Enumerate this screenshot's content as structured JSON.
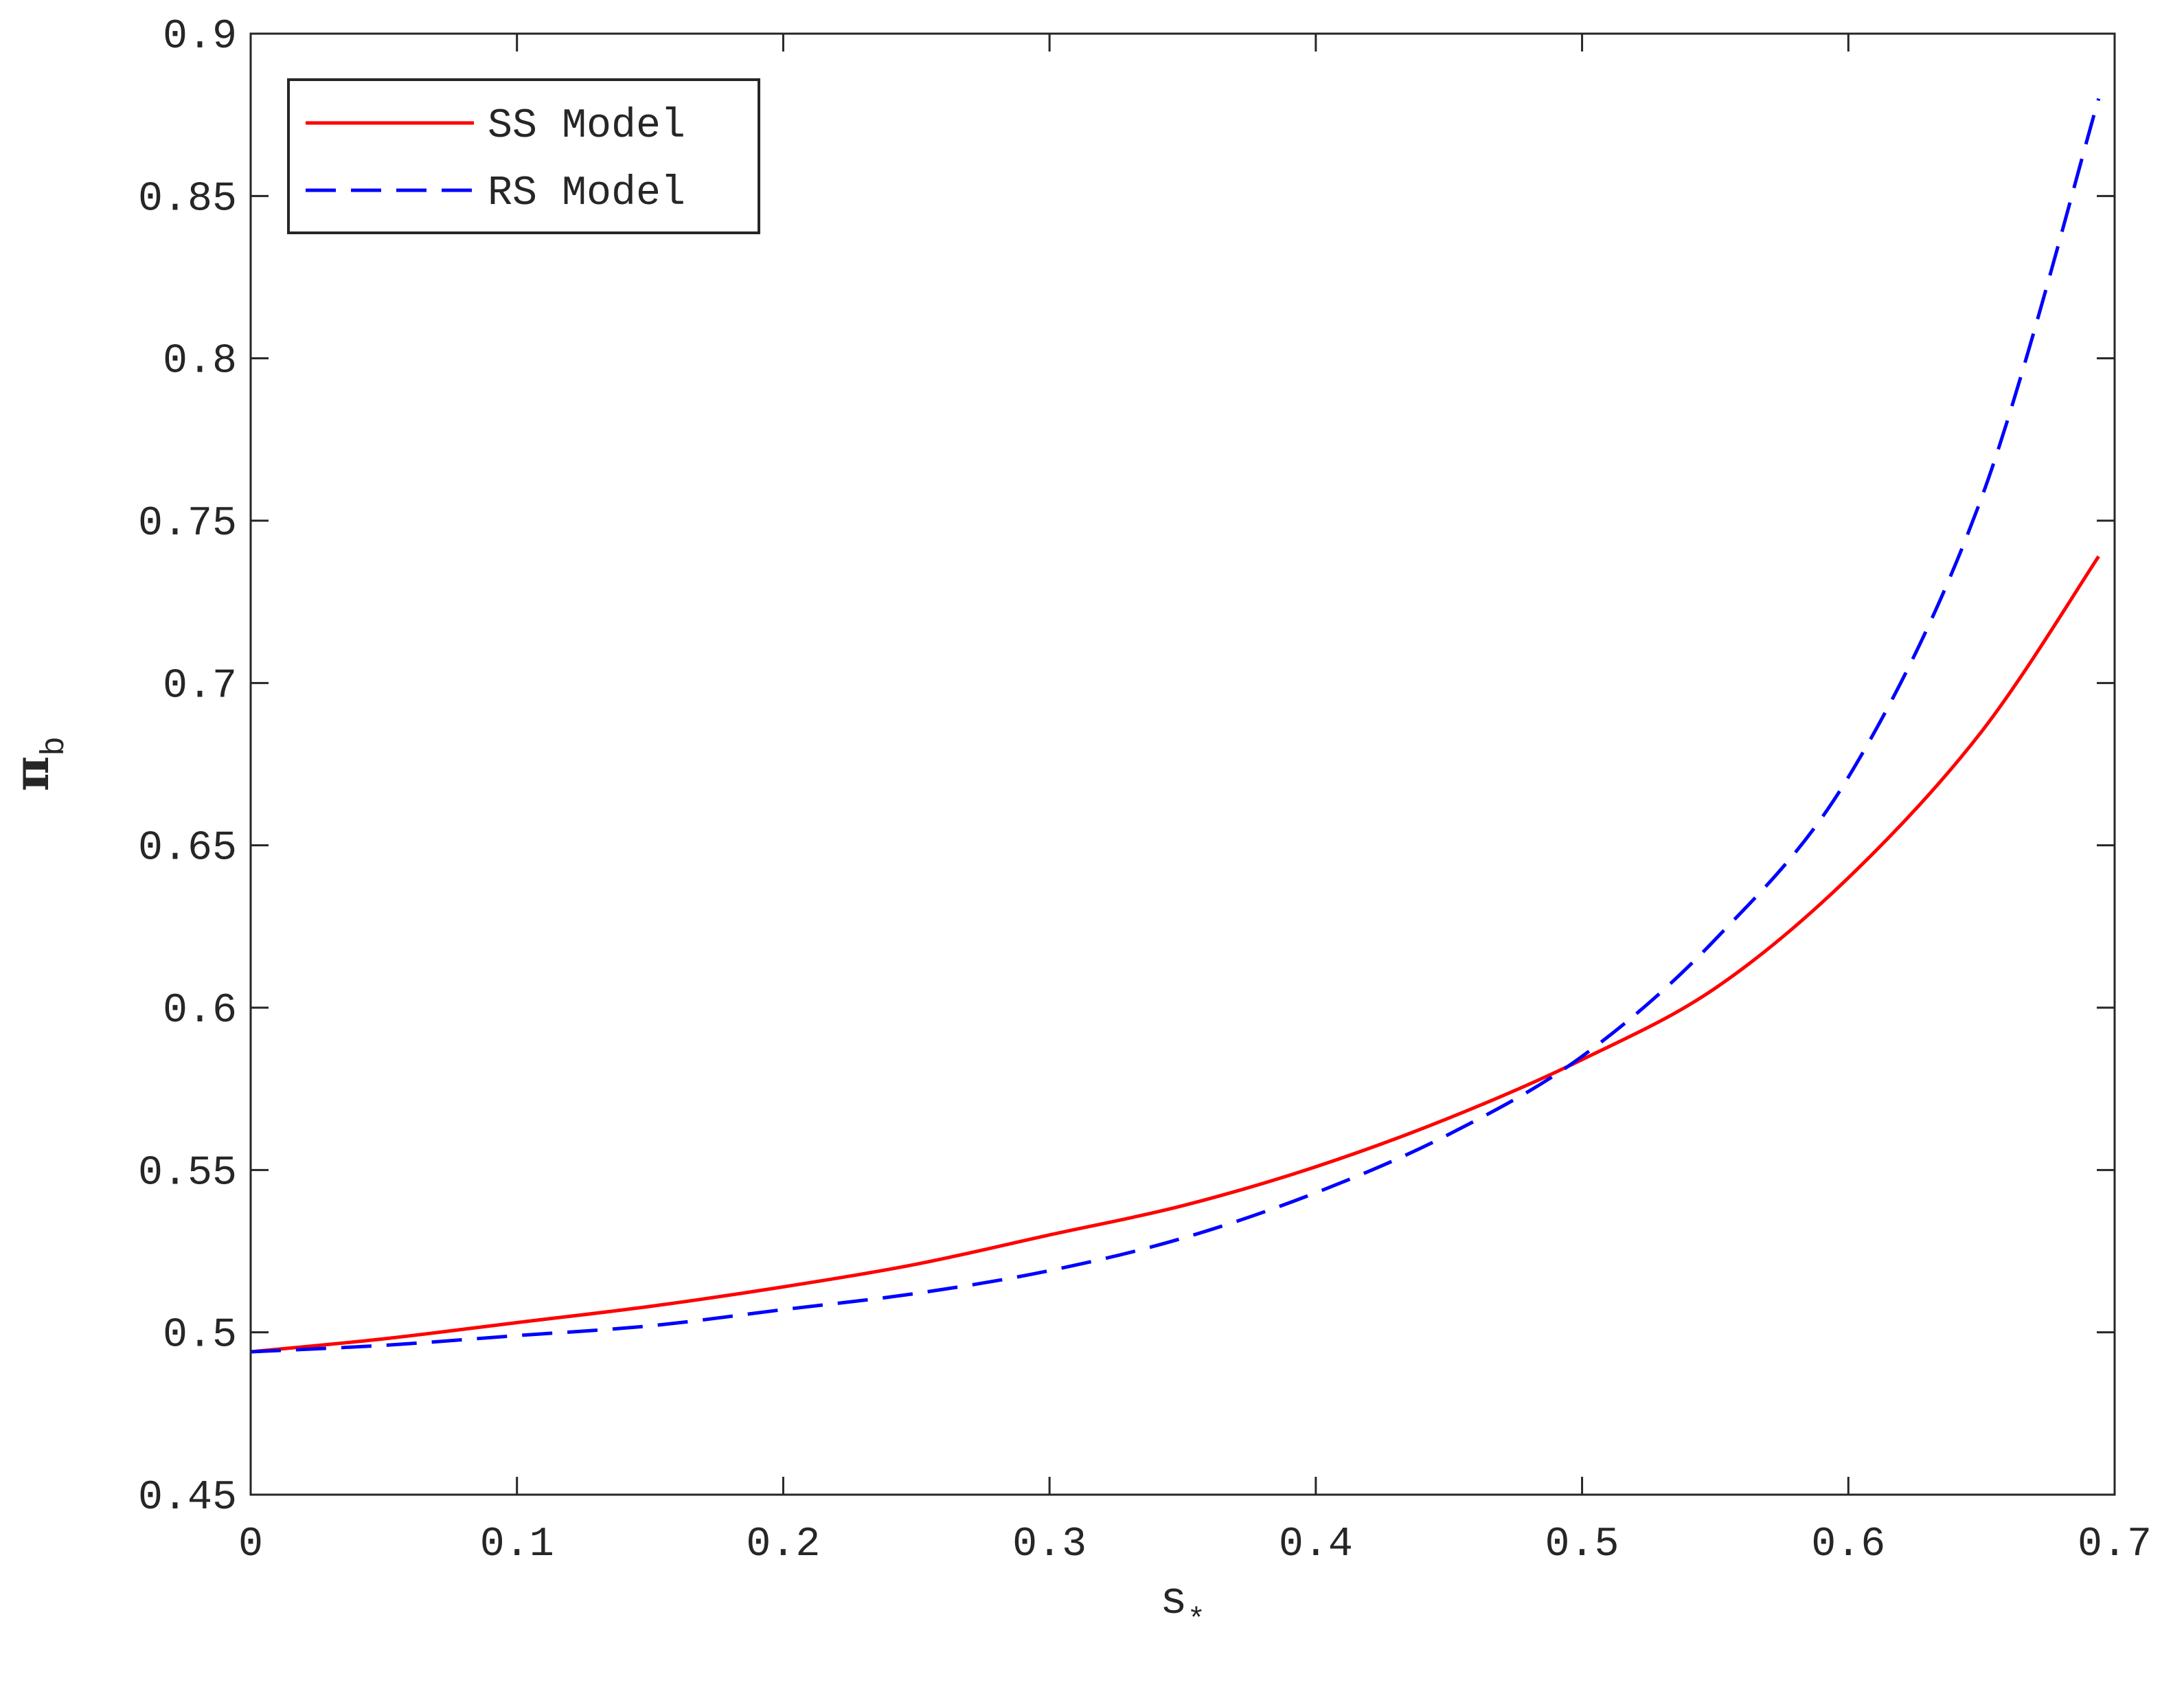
{
  "chart_data": {
    "type": "line",
    "xlabel": "s",
    "xlabel_sub": "*",
    "ylabel": "π",
    "ylabel_sub": "b",
    "x": [
      0,
      0.05,
      0.1,
      0.15,
      0.2,
      0.25,
      0.3,
      0.35,
      0.4,
      0.45,
      0.5,
      0.55,
      0.6,
      0.65,
      0.694
    ],
    "series": [
      {
        "name": "SS Model",
        "color": "#ff0000",
        "dash": "solid",
        "values": [
          0.494,
          0.498,
          0.503,
          0.508,
          0.514,
          0.521,
          0.53,
          0.539,
          0.551,
          0.566,
          0.584,
          0.606,
          0.64,
          0.685,
          0.739
        ]
      },
      {
        "name": "RS Model",
        "color": "#0000ff",
        "dash": "dashed",
        "values": [
          0.494,
          0.496,
          0.499,
          0.502,
          0.507,
          0.512,
          0.519,
          0.529,
          0.543,
          0.561,
          0.585,
          0.621,
          0.671,
          0.757,
          0.88
        ]
      }
    ],
    "xlim": [
      0,
      0.7
    ],
    "xticks": [
      0,
      0.1,
      0.2,
      0.3,
      0.4,
      0.5,
      0.6,
      0.7
    ],
    "ylim": [
      0.45,
      0.9
    ],
    "yticks": [
      0.45,
      0.5,
      0.55,
      0.6,
      0.65,
      0.7,
      0.75,
      0.8,
      0.85,
      0.9
    ],
    "legend": "upper left",
    "grid": false
  }
}
